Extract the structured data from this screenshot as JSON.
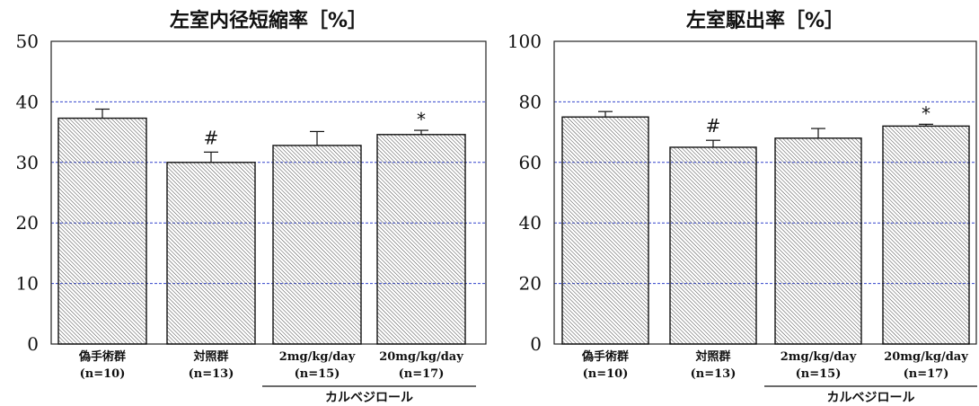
{
  "chart_data": [
    {
      "type": "bar",
      "title": "左室内径短縮率［%］",
      "ylim": [
        0,
        50
      ],
      "yticks": [
        0,
        10,
        20,
        30,
        40,
        50
      ],
      "grid": true,
      "categories": [
        "偽手術群",
        "対照群",
        "2mg/kg/day",
        "20mg/kg/day"
      ],
      "category_n": [
        "(n=10)",
        "(n=13)",
        "(n=15)",
        "(n=17)"
      ],
      "values": [
        37.3,
        30.0,
        32.8,
        34.6
      ],
      "errors": [
        1.5,
        1.7,
        2.3,
        0.7
      ],
      "annotations": [
        "",
        "#",
        "",
        "*"
      ],
      "group_label": "カルベジロール",
      "group_members": [
        2,
        3
      ]
    },
    {
      "type": "bar",
      "title": "左室駆出率［%］",
      "ylim": [
        0,
        100
      ],
      "yticks": [
        0,
        20,
        40,
        60,
        80,
        100
      ],
      "grid": true,
      "categories": [
        "偽手術群",
        "対照群",
        "2mg/kg/day",
        "20mg/kg/day"
      ],
      "category_n": [
        "(n=10)",
        "(n=13)",
        "(n=15)",
        "(n=17)"
      ],
      "values": [
        75.0,
        65.0,
        68.0,
        72.0
      ],
      "errors": [
        1.8,
        2.3,
        3.2,
        0.6
      ],
      "annotations": [
        "",
        "#",
        "",
        "*"
      ],
      "group_label": "カルベジロール",
      "group_members": [
        2,
        3
      ]
    }
  ]
}
